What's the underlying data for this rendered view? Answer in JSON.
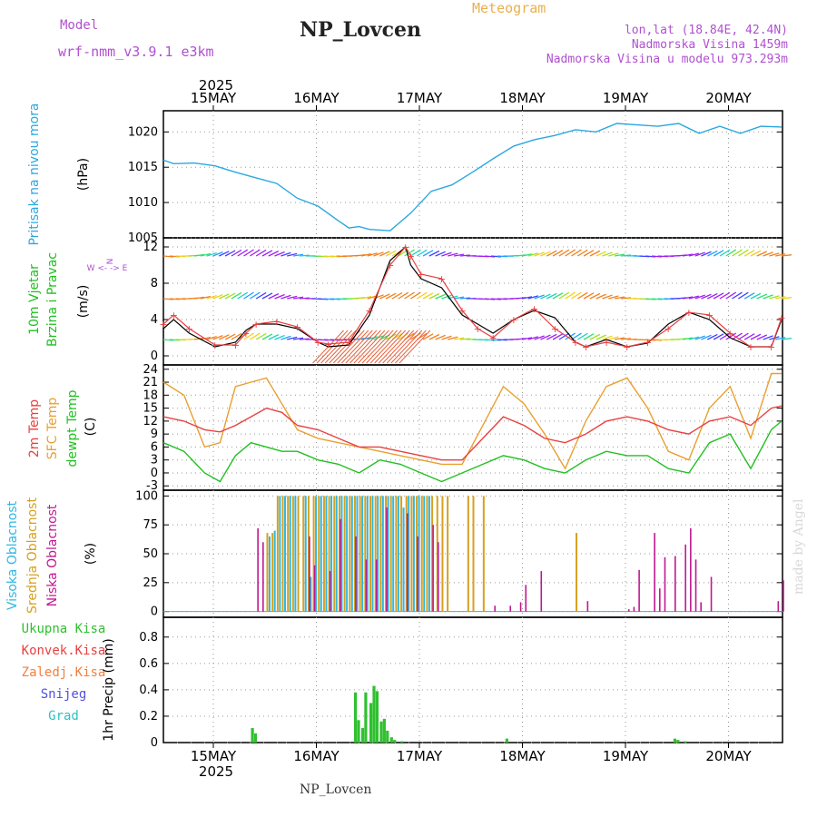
{
  "header": {
    "meteogram_label": "Meteogram",
    "station": "NP_Lovcen",
    "model_label": "Model",
    "model_name": "wrf-nmm_v3.9.1 e3km",
    "lonlat": "lon,lat (18.84E, 42.4N)",
    "altitude": "Nadmorska Visina 1459m",
    "model_altitude": "Nadmorska Visina u modelu 973.293m",
    "bottom_station": "NP_Lovcen",
    "watermark": "made by Angel"
  },
  "colors": {
    "pressure": "#2aa8e0",
    "temp2m": "#e84040",
    "sfc": "#e8a030",
    "dewpt": "#20c020",
    "high_cloud": "#30b8e0",
    "mid_cloud": "#d8a020",
    "low_cloud": "#c01890",
    "precip": "#30c030",
    "mslabel": "#20b8d0",
    "wind_label": "#20c020"
  },
  "chart_data": [
    {
      "panel": "pressure",
      "type": "line",
      "ylabel_name": "Pritisak na nivou mora",
      "ylabel_unit": "(hPa)",
      "ylim": [
        1005,
        1023
      ],
      "yticks": [
        1005,
        1010,
        1015,
        1020
      ],
      "x_day": [
        0,
        0.1,
        0.3,
        0.5,
        0.7,
        0.9,
        1.1,
        1.3,
        1.5,
        1.7,
        1.8,
        1.9,
        2.0,
        2.2,
        2.4,
        2.6,
        2.8,
        3.0,
        3.2,
        3.4,
        3.6,
        3.8,
        4.0,
        4.2,
        4.4,
        4.6,
        4.8,
        5.0,
        5.2,
        5.4,
        5.6,
        5.8,
        6.0
      ],
      "values": [
        1016,
        1015.5,
        1015.6,
        1015.2,
        1014.3,
        1013.5,
        1012.7,
        1010.6,
        1009.5,
        1007.4,
        1006.4,
        1006.6,
        1006.2,
        1006.0,
        1008.5,
        1011.6,
        1012.5,
        1014.3,
        1016.2,
        1018.0,
        1018.9,
        1019.5,
        1020.3,
        1020.0,
        1021.2,
        1021.0,
        1020.8,
        1021.2,
        1019.8,
        1020.8,
        1019.8,
        1020.8,
        1020.7
      ]
    },
    {
      "panel": "wind",
      "type": "line",
      "ylabel_name": "10m Vjetar",
      "ylabel_name2": "Brzina i Pravac",
      "ylabel_unit": "(m/s)",
      "compass": "W <- -> E",
      "compass_ns": "N",
      "ylim": [
        -1,
        13
      ],
      "yticks": [
        0,
        4,
        8,
        12
      ],
      "x_day": [
        0,
        0.1,
        0.25,
        0.5,
        0.7,
        0.8,
        0.9,
        1.1,
        1.3,
        1.5,
        1.6,
        1.8,
        2.0,
        2.2,
        2.35,
        2.4,
        2.5,
        2.7,
        2.9,
        3.05,
        3.2,
        3.4,
        3.6,
        3.8,
        4.0,
        4.1,
        4.3,
        4.5,
        4.7,
        4.9,
        5.1,
        5.3,
        5.5,
        5.7,
        5.9,
        6.0
      ],
      "speed_black": [
        3.0,
        4.0,
        2.5,
        1.0,
        1.5,
        2.8,
        3.5,
        3.5,
        3.0,
        1.5,
        1.0,
        1.2,
        4.5,
        10.5,
        12.0,
        10.0,
        8.5,
        7.5,
        4.5,
        3.5,
        2.5,
        4.0,
        5.0,
        4.2,
        1.5,
        1.0,
        1.8,
        1.0,
        1.4,
        3.5,
        4.8,
        4.0,
        2.0,
        1.0,
        1.0,
        4.0
      ],
      "speed_red": [
        3.5,
        4.5,
        3.0,
        1.2,
        1.2,
        2.5,
        3.5,
        3.8,
        3.2,
        1.5,
        1.3,
        1.5,
        5.0,
        10.0,
        12.0,
        11.0,
        9.0,
        8.5,
        5.0,
        3.0,
        2.0,
        4.0,
        5.2,
        3.0,
        1.5,
        1.0,
        1.5,
        1.0,
        1.5,
        3.0,
        4.8,
        4.5,
        2.5,
        1.0,
        1.0,
        4.2
      ],
      "direction_bands": [
        1.8,
        6.3,
        11.0
      ]
    },
    {
      "panel": "temperature",
      "type": "line",
      "ylabel_name": "2m Temp",
      "ylabel_name2": "SFC Temp",
      "ylabel_name3": "dewpt Temp",
      "ylabel_unit": "(C)",
      "ylim": [
        -4,
        25
      ],
      "yticks": [
        -3,
        0,
        3,
        6,
        9,
        12,
        15,
        18,
        21,
        24
      ],
      "x_day": [
        0,
        0.2,
        0.4,
        0.55,
        0.7,
        0.85,
        1.0,
        1.15,
        1.3,
        1.5,
        1.7,
        1.9,
        2.1,
        2.3,
        2.5,
        2.7,
        2.9,
        3.1,
        3.3,
        3.5,
        3.7,
        3.9,
        4.1,
        4.3,
        4.5,
        4.7,
        4.9,
        5.1,
        5.3,
        5.5,
        5.7,
        5.9,
        6.0
      ],
      "temp2m": [
        13,
        12,
        10,
        9.5,
        11,
        13,
        15,
        14,
        11,
        10,
        8,
        6,
        6,
        5,
        4,
        3,
        3,
        8,
        13,
        11,
        8,
        7,
        9,
        12,
        13,
        12,
        10,
        9,
        12,
        13,
        11,
        15,
        15.5
      ],
      "sfc": [
        21,
        18,
        6,
        7,
        20,
        21,
        22,
        16,
        10,
        8,
        7,
        6,
        5,
        4,
        3,
        2,
        2,
        11,
        20,
        16,
        9,
        1,
        12,
        20,
        22,
        15,
        5,
        3,
        15,
        20,
        8,
        23,
        23
      ],
      "dewpt": [
        7,
        5,
        0,
        -2,
        4,
        7,
        6,
        5,
        5,
        3,
        2,
        0,
        3,
        2,
        0,
        -2,
        0,
        2,
        4,
        3,
        1,
        0,
        3,
        5,
        4,
        4,
        1,
        0,
        7,
        9,
        1,
        10,
        12
      ]
    },
    {
      "panel": "cloud",
      "type": "bar",
      "ylabel_name": "Visoka Oblacnost",
      "ylabel_name2": "Srednja Oblacnost",
      "ylabel_name3": "Niska Oblacnost",
      "ylabel_unit": "(%)",
      "ylim": [
        -5,
        105
      ],
      "yticks": [
        0,
        25,
        50,
        75,
        100
      ],
      "high_x_day": [
        1.0,
        1.05,
        1.1,
        1.15,
        1.2,
        1.25,
        1.35,
        1.4,
        1.45,
        1.5,
        1.55,
        1.6,
        1.65,
        1.7,
        1.75,
        1.8,
        1.85,
        1.9,
        1.95,
        2.0,
        2.05,
        2.1,
        2.15,
        2.2,
        2.25,
        2.3,
        2.35,
        2.4,
        2.45,
        2.5,
        2.55
      ],
      "high_values": [
        65,
        70,
        100,
        100,
        100,
        100,
        100,
        30,
        100,
        100,
        100,
        100,
        100,
        100,
        100,
        100,
        100,
        100,
        100,
        100,
        100,
        100,
        100,
        100,
        100,
        90,
        100,
        100,
        100,
        100,
        100
      ],
      "mid_x_day": [
        1.0,
        1.05,
        1.1,
        1.15,
        1.2,
        1.25,
        1.3,
        1.35,
        1.4,
        1.45,
        1.5,
        1.55,
        1.6,
        1.65,
        1.7,
        1.75,
        1.8,
        1.85,
        1.9,
        1.95,
        2.0,
        2.05,
        2.1,
        2.15,
        2.2,
        2.25,
        2.3,
        2.35,
        2.4,
        2.45,
        2.5,
        2.55,
        2.6,
        2.65,
        2.7,
        2.75,
        2.95,
        3.0,
        3.1,
        4.0
      ],
      "mid_values": [
        68,
        68,
        100,
        100,
        100,
        100,
        100,
        100,
        100,
        100,
        100,
        100,
        100,
        100,
        100,
        100,
        100,
        100,
        100,
        100,
        100,
        100,
        100,
        100,
        100,
        100,
        100,
        100,
        100,
        100,
        100,
        100,
        100,
        100,
        100,
        100,
        100,
        100,
        100,
        68
      ],
      "low_x_day": [
        0.9,
        0.95,
        1.4,
        1.45,
        1.6,
        1.7,
        1.85,
        1.95,
        2.05,
        2.15,
        2.35,
        2.45,
        2.6,
        2.65,
        3.2,
        3.35,
        3.45,
        3.5,
        3.65,
        4.1,
        4.5,
        4.55,
        4.6,
        4.75,
        4.8,
        4.85,
        4.95,
        5.05,
        5.1,
        5.15,
        5.2,
        5.3,
        5.95,
        6.0
      ],
      "low_values": [
        72,
        60,
        65,
        40,
        35,
        80,
        65,
        45,
        45,
        90,
        85,
        65,
        75,
        60,
        5,
        5,
        8,
        23,
        35,
        9,
        2,
        4,
        36,
        68,
        20,
        47,
        48,
        58,
        72,
        45,
        8,
        30,
        9,
        27
      ]
    },
    {
      "panel": "precip",
      "type": "bar",
      "legend": [
        "Ukupna Kisa",
        "Konvek.Kisa",
        "Zaledj.Kisa",
        "Snijeg",
        "Grad"
      ],
      "legend_colors": [
        "#30c030",
        "#e84040",
        "#f08040",
        "#5050e0",
        "#30c0c0"
      ],
      "ylabel_name": "1hr Precip",
      "ylabel_unit": "(mm)",
      "ylim": [
        0,
        0.95
      ],
      "yticks": [
        0,
        0.2,
        0.4,
        0.6,
        0.8
      ],
      "x_day": [
        0.85,
        0.88,
        1.85,
        1.88,
        1.92,
        1.95,
        2.0,
        2.03,
        2.06,
        2.1,
        2.13,
        2.16,
        2.2,
        2.23,
        2.3,
        3.32,
        4.95,
        4.98,
        5.05
      ],
      "values": [
        0.11,
        0.07,
        0.38,
        0.17,
        0.11,
        0.38,
        0.3,
        0.43,
        0.39,
        0.16,
        0.18,
        0.09,
        0.04,
        0.02,
        0.01,
        0.03,
        0.03,
        0.02,
        0.01
      ]
    }
  ],
  "x_axis": {
    "year_top": "2025",
    "year_bottom": "2025",
    "days": [
      "15MAY",
      "16MAY",
      "17MAY",
      "18MAY",
      "19MAY",
      "20MAY"
    ]
  }
}
